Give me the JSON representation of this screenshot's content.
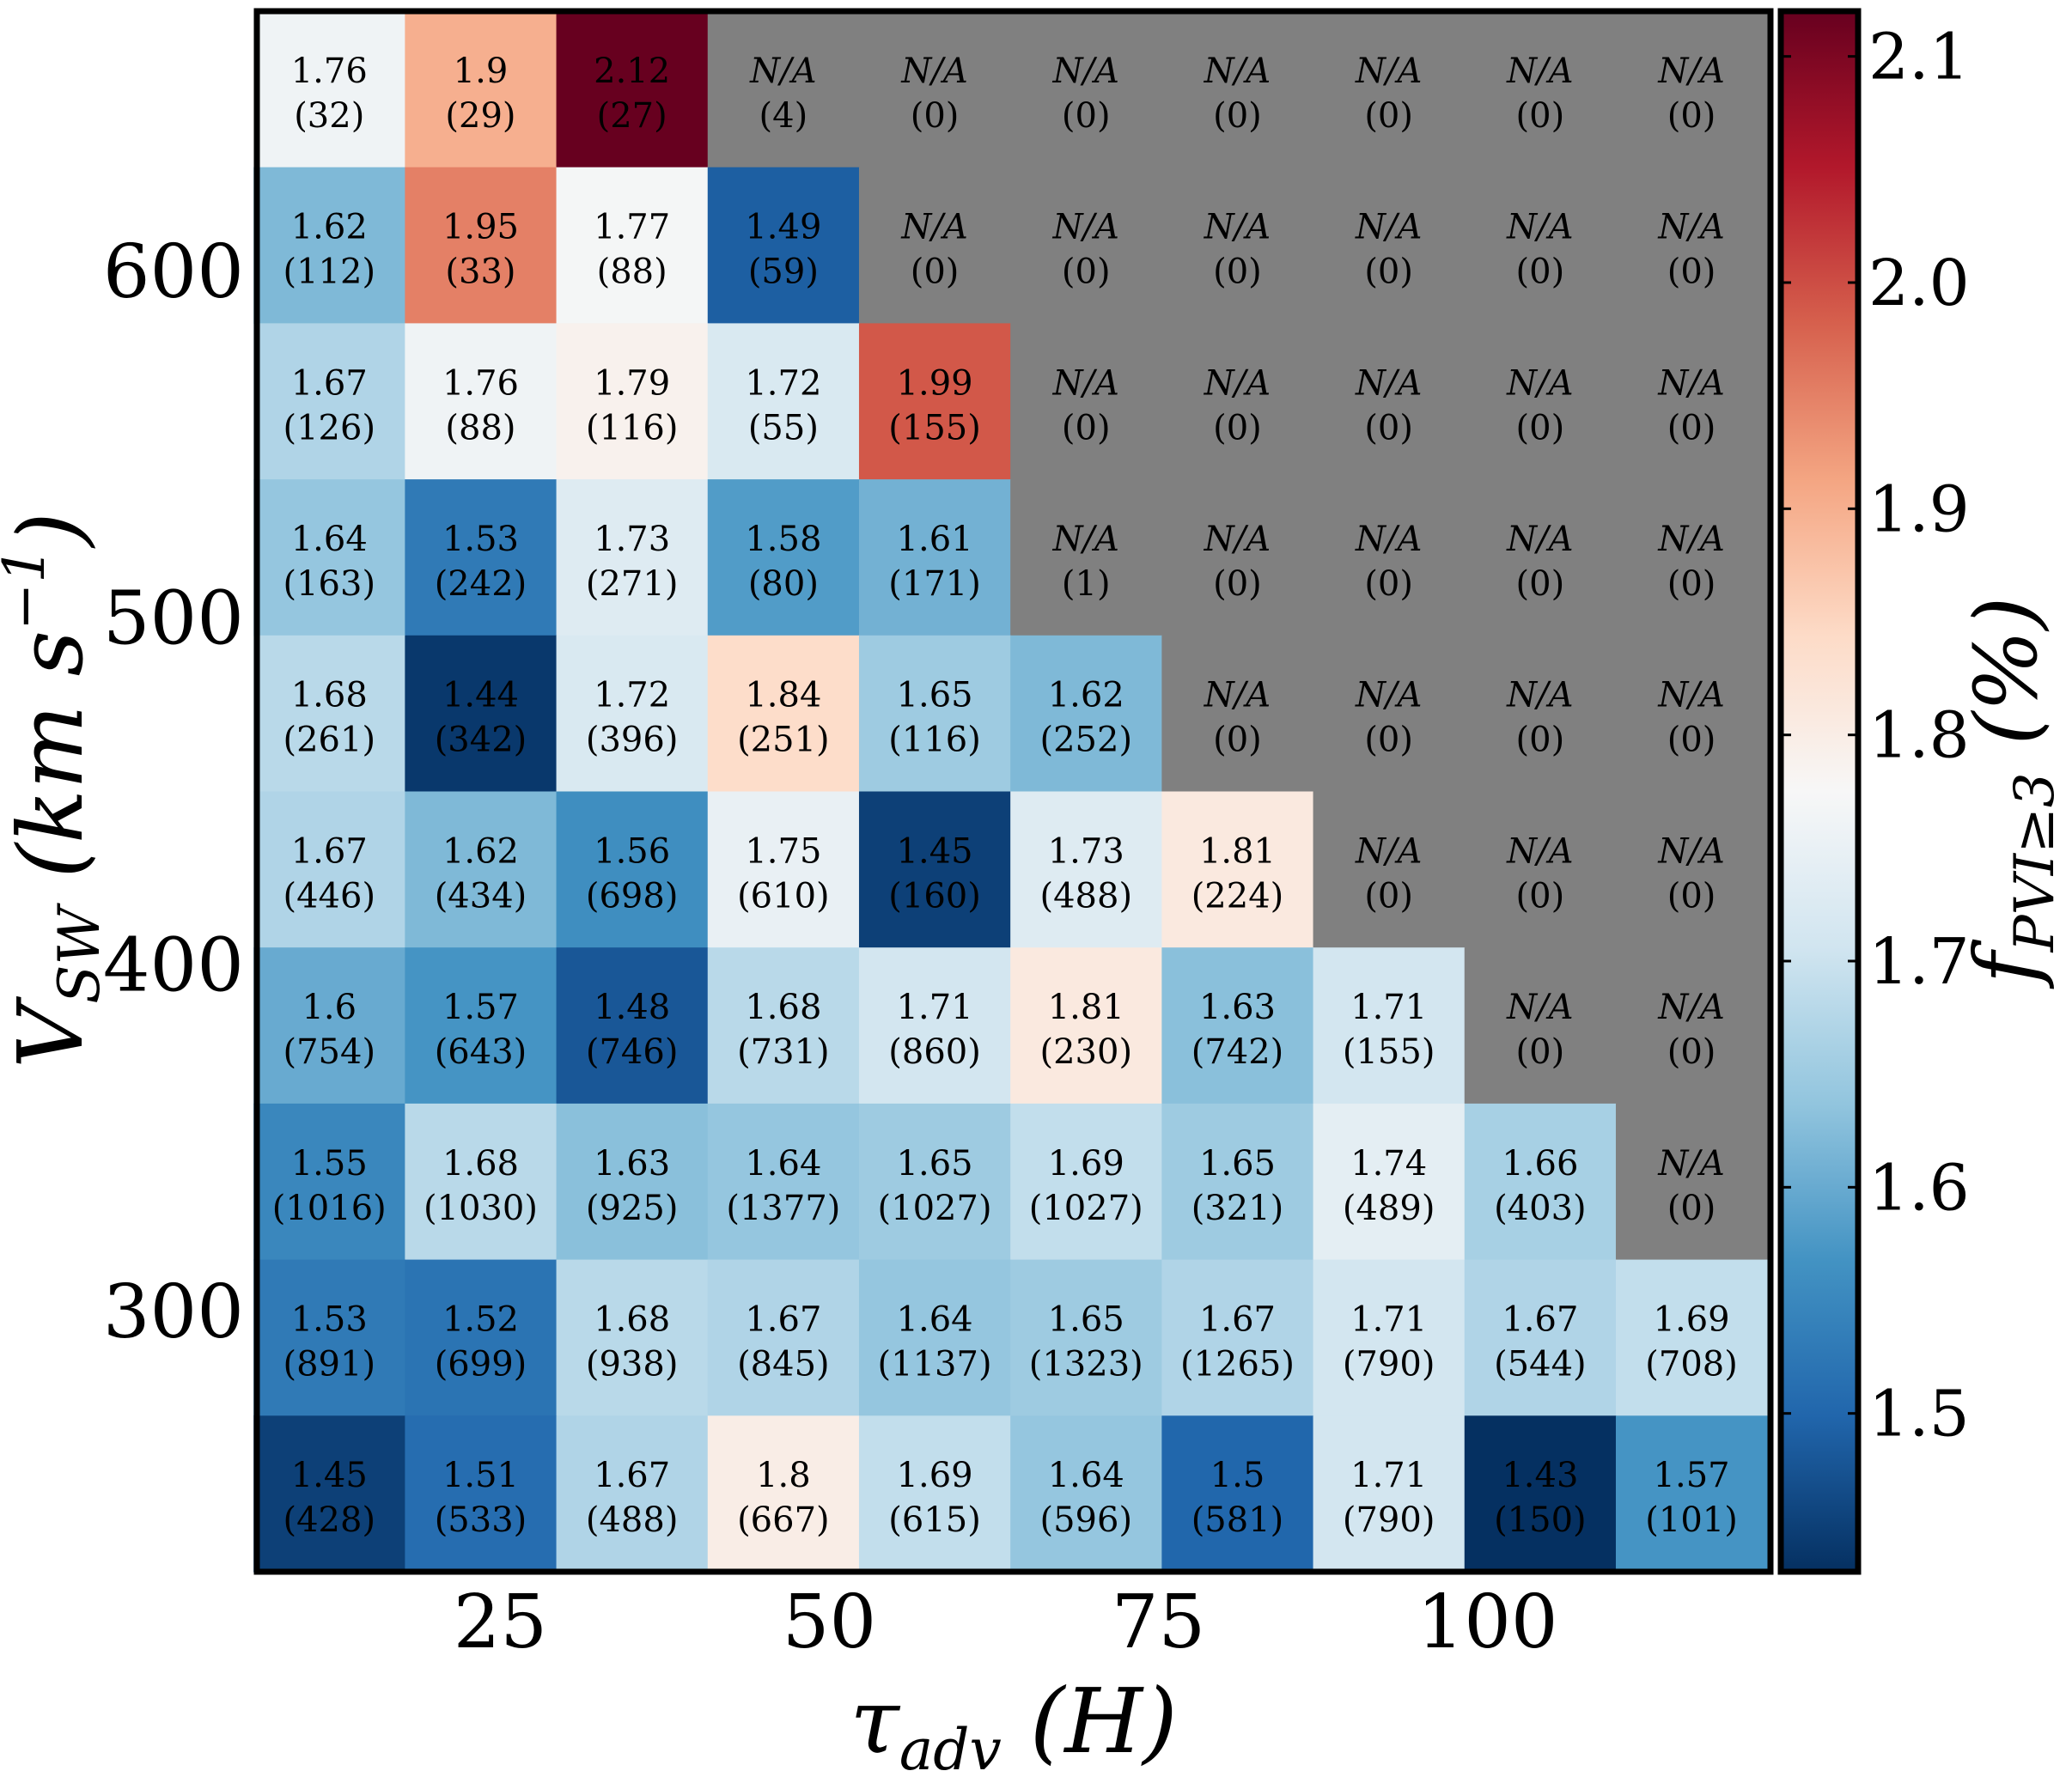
{
  "chart_data": {
    "type": "heatmap",
    "title": "",
    "xlabel": "τadv (H)",
    "ylabel": "VSW (km s−1)",
    "colorbar_label": "fPVI≥3 (%)",
    "na_label": "N/A",
    "x_ticks": [
      {
        "label": "25",
        "value": 25
      },
      {
        "label": "50",
        "value": 50
      },
      {
        "label": "75",
        "value": 75
      },
      {
        "label": "100",
        "value": 100
      }
    ],
    "y_ticks": [
      {
        "label": "600",
        "value": 600
      },
      {
        "label": "500",
        "value": 500
      },
      {
        "label": "400",
        "value": 400
      },
      {
        "label": "300",
        "value": 300
      }
    ],
    "colorbar_ticks": [
      {
        "label": "1.5",
        "value": 1.5
      },
      {
        "label": "1.6",
        "value": 1.6
      },
      {
        "label": "1.7",
        "value": 1.7
      },
      {
        "label": "1.8",
        "value": 1.8
      },
      {
        "label": "1.9",
        "value": 1.9
      },
      {
        "label": "2.0",
        "value": 2.0
      },
      {
        "label": "2.1",
        "value": 2.1
      }
    ],
    "x_range": [
      6.5,
      121.5
    ],
    "y_range": [
      225,
      675
    ],
    "color_range": [
      1.43,
      2.12
    ],
    "colormap": "RdBu_r",
    "na_color": "#808080",
    "x_centers": [
      12,
      23.5,
      35,
      46.5,
      58,
      69.5,
      81,
      92.5,
      104,
      115.5
    ],
    "y_centers": [
      652.5,
      607.5,
      562.5,
      517.5,
      472.5,
      427.5,
      382.5,
      337.5,
      292.5,
      247.5
    ],
    "rows": [
      {
        "values": [
          1.76,
          1.9,
          2.12,
          null,
          null,
          null,
          null,
          null,
          null,
          null
        ],
        "labels": [
          "1.76",
          "1.9",
          "2.12",
          "N/A",
          "N/A",
          "N/A",
          "N/A",
          "N/A",
          "N/A",
          "N/A"
        ],
        "counts": [
          "(32)",
          "(29)",
          "(27)",
          "(4)",
          "(0)",
          "(0)",
          "(0)",
          "(0)",
          "(0)",
          "(0)"
        ]
      },
      {
        "values": [
          1.62,
          1.95,
          1.77,
          1.49,
          null,
          null,
          null,
          null,
          null,
          null
        ],
        "labels": [
          "1.62",
          "1.95",
          "1.77",
          "1.49",
          "N/A",
          "N/A",
          "N/A",
          "N/A",
          "N/A",
          "N/A"
        ],
        "counts": [
          "(112)",
          "(33)",
          "(88)",
          "(59)",
          "(0)",
          "(0)",
          "(0)",
          "(0)",
          "(0)",
          "(0)"
        ]
      },
      {
        "values": [
          1.67,
          1.76,
          1.79,
          1.72,
          1.99,
          null,
          null,
          null,
          null,
          null
        ],
        "labels": [
          "1.67",
          "1.76",
          "1.79",
          "1.72",
          "1.99",
          "N/A",
          "N/A",
          "N/A",
          "N/A",
          "N/A"
        ],
        "counts": [
          "(126)",
          "(88)",
          "(116)",
          "(55)",
          "(155)",
          "(0)",
          "(0)",
          "(0)",
          "(0)",
          "(0)"
        ]
      },
      {
        "values": [
          1.64,
          1.53,
          1.73,
          1.58,
          1.61,
          null,
          null,
          null,
          null,
          null
        ],
        "labels": [
          "1.64",
          "1.53",
          "1.73",
          "1.58",
          "1.61",
          "N/A",
          "N/A",
          "N/A",
          "N/A",
          "N/A"
        ],
        "counts": [
          "(163)",
          "(242)",
          "(271)",
          "(80)",
          "(171)",
          "(1)",
          "(0)",
          "(0)",
          "(0)",
          "(0)"
        ]
      },
      {
        "values": [
          1.68,
          1.44,
          1.72,
          1.84,
          1.65,
          1.62,
          null,
          null,
          null,
          null
        ],
        "labels": [
          "1.68",
          "1.44",
          "1.72",
          "1.84",
          "1.65",
          "1.62",
          "N/A",
          "N/A",
          "N/A",
          "N/A"
        ],
        "counts": [
          "(261)",
          "(342)",
          "(396)",
          "(251)",
          "(116)",
          "(252)",
          "(0)",
          "(0)",
          "(0)",
          "(0)"
        ]
      },
      {
        "values": [
          1.67,
          1.62,
          1.56,
          1.75,
          1.45,
          1.73,
          1.81,
          null,
          null,
          null
        ],
        "labels": [
          "1.67",
          "1.62",
          "1.56",
          "1.75",
          "1.45",
          "1.73",
          "1.81",
          "N/A",
          "N/A",
          "N/A"
        ],
        "counts": [
          "(446)",
          "(434)",
          "(698)",
          "(610)",
          "(160)",
          "(488)",
          "(224)",
          "(0)",
          "(0)",
          "(0)"
        ]
      },
      {
        "values": [
          1.6,
          1.57,
          1.48,
          1.68,
          1.71,
          1.81,
          1.63,
          1.71,
          null,
          null
        ],
        "labels": [
          "1.6",
          "1.57",
          "1.48",
          "1.68",
          "1.71",
          "1.81",
          "1.63",
          "1.71",
          "N/A",
          "N/A"
        ],
        "counts": [
          "(754)",
          "(643)",
          "(746)",
          "(731)",
          "(860)",
          "(230)",
          "(742)",
          "(155)",
          "(0)",
          "(0)"
        ]
      },
      {
        "values": [
          1.55,
          1.68,
          1.63,
          1.64,
          1.65,
          1.69,
          1.65,
          1.74,
          1.66,
          null
        ],
        "labels": [
          "1.55",
          "1.68",
          "1.63",
          "1.64",
          "1.65",
          "1.69",
          "1.65",
          "1.74",
          "1.66",
          "N/A"
        ],
        "counts": [
          "(1016)",
          "(1030)",
          "(925)",
          "(1377)",
          "(1027)",
          "(1027)",
          "(321)",
          "(489)",
          "(403)",
          "(0)"
        ]
      },
      {
        "values": [
          1.53,
          1.52,
          1.68,
          1.67,
          1.64,
          1.65,
          1.67,
          1.71,
          1.67,
          1.69
        ],
        "labels": [
          "1.53",
          "1.52",
          "1.68",
          "1.67",
          "1.64",
          "1.65",
          "1.67",
          "1.71",
          "1.67",
          "1.69"
        ],
        "counts": [
          "(891)",
          "(699)",
          "(938)",
          "(845)",
          "(1137)",
          "(1323)",
          "(1265)",
          "(790)",
          "(544)",
          "(708)"
        ]
      },
      {
        "values": [
          1.45,
          1.51,
          1.67,
          1.8,
          1.69,
          1.64,
          1.5,
          1.71,
          1.43,
          1.57
        ],
        "labels": [
          "1.45",
          "1.51",
          "1.67",
          "1.8",
          "1.69",
          "1.64",
          "1.5",
          "1.71",
          "1.43",
          "1.57"
        ],
        "counts": [
          "(428)",
          "(533)",
          "(488)",
          "(667)",
          "(615)",
          "(596)",
          "(581)",
          "(790)",
          "(150)",
          "(101)"
        ]
      }
    ]
  }
}
